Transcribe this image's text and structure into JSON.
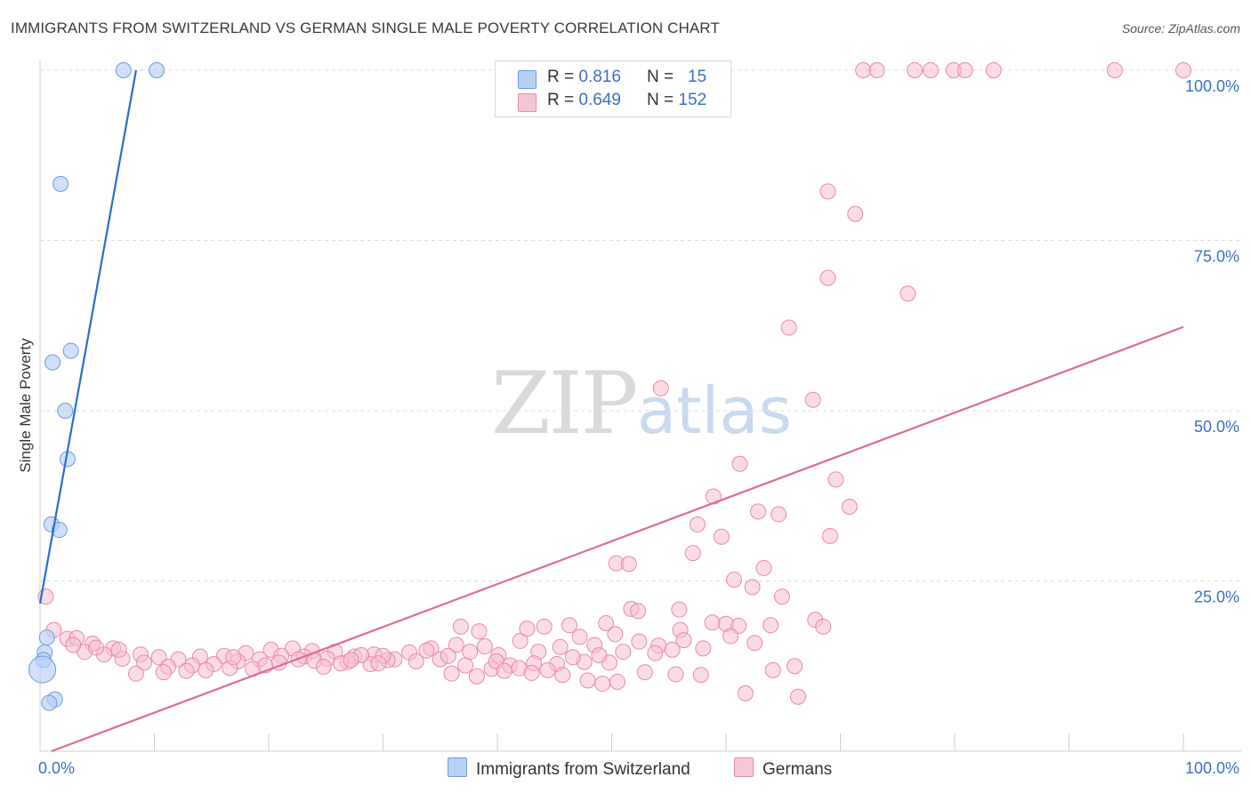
{
  "header": {
    "title": "IMMIGRANTS FROM SWITZERLAND VS GERMAN SINGLE MALE POVERTY CORRELATION CHART",
    "source": "Source: ZipAtlas.com"
  },
  "watermark": {
    "zip": "ZIP",
    "atlas": "atlas"
  },
  "legend": {
    "rows": [
      {
        "r_label": "R =",
        "r_value": "0.816",
        "n_label": "N =",
        "n_value": "15"
      },
      {
        "r_label": "R =",
        "r_value": "0.649",
        "n_label": "N =",
        "n_value": "152"
      }
    ]
  },
  "colors": {
    "blue_fill": "#b8d0f4",
    "blue_stroke": "#6b9be0",
    "blue_line": "#2a6dd0",
    "pink_fill": "#f7bfd0",
    "pink_stroke": "#e88aa8",
    "pink_line": "#e06a94",
    "grid": "#dcdcdc",
    "axis_label": "#3b6fc4"
  },
  "chart_data": {
    "type": "scatter",
    "title": "IMMIGRANTS FROM SWITZERLAND VS GERMAN SINGLE MALE POVERTY CORRELATION CHART",
    "xlabel": "",
    "ylabel": "Single Male Poverty",
    "xlim": [
      0,
      100
    ],
    "ylim": [
      0,
      100
    ],
    "x_tick_labels": [
      "0.0%",
      "100.0%"
    ],
    "y_tick_labels": [
      {
        "value": 100,
        "label": "100.0%"
      },
      {
        "value": 75,
        "label": "75.0%"
      },
      {
        "value": 50,
        "label": "50.0%"
      },
      {
        "value": 25,
        "label": "25.0%"
      }
    ],
    "series": [
      {
        "name": "Immigrants from Switzerland",
        "color": "#b8d0f4",
        "r": 0.816,
        "n": 15,
        "trend": {
          "x": [
            0,
            8.4
          ],
          "y": [
            21.7,
            100
          ]
        },
        "points": [
          [
            7.3,
            100
          ],
          [
            10.2,
            100
          ],
          [
            1.8,
            83.3
          ],
          [
            1.1,
            57.1
          ],
          [
            2.7,
            58.8
          ],
          [
            2.2,
            50.0
          ],
          [
            2.4,
            42.9
          ],
          [
            1.0,
            33.3
          ],
          [
            1.7,
            32.5
          ],
          [
            0.6,
            16.7
          ],
          [
            0.4,
            14.5
          ],
          [
            0.3,
            13.4
          ],
          [
            0.2,
            12.0
          ],
          [
            1.3,
            7.6
          ],
          [
            0.8,
            7.1
          ]
        ]
      },
      {
        "name": "Germans",
        "color": "#f7bfd0",
        "r": 0.649,
        "n": 152,
        "trend": {
          "x": [
            1.0,
            100
          ],
          "y": [
            0,
            62.3
          ]
        },
        "points": [
          [
            72.0,
            100
          ],
          [
            73.2,
            100
          ],
          [
            76.5,
            100
          ],
          [
            77.9,
            100
          ],
          [
            79.9,
            100
          ],
          [
            80.9,
            100
          ],
          [
            83.4,
            100
          ],
          [
            94.0,
            100
          ],
          [
            100,
            100
          ],
          [
            68.9,
            82.2
          ],
          [
            71.3,
            78.9
          ],
          [
            68.9,
            69.5
          ],
          [
            75.9,
            67.2
          ],
          [
            65.5,
            62.2
          ],
          [
            67.6,
            51.6
          ],
          [
            54.3,
            53.3
          ],
          [
            61.2,
            42.2
          ],
          [
            69.6,
            39.9
          ],
          [
            70.8,
            35.9
          ],
          [
            58.9,
            37.4
          ],
          [
            62.8,
            35.2
          ],
          [
            64.6,
            34.8
          ],
          [
            57.5,
            33.3
          ],
          [
            59.6,
            31.5
          ],
          [
            69.1,
            31.6
          ],
          [
            57.1,
            29.1
          ],
          [
            50.4,
            27.6
          ],
          [
            51.5,
            27.5
          ],
          [
            63.3,
            26.9
          ],
          [
            60.7,
            25.2
          ],
          [
            62.3,
            24.1
          ],
          [
            64.9,
            22.7
          ],
          [
            0.5,
            22.7
          ],
          [
            51.7,
            20.9
          ],
          [
            52.3,
            20.6
          ],
          [
            55.9,
            20.8
          ],
          [
            49.5,
            18.8
          ],
          [
            58.8,
            18.9
          ],
          [
            60.0,
            18.7
          ],
          [
            61.1,
            18.4
          ],
          [
            63.9,
            18.5
          ],
          [
            67.8,
            19.3
          ],
          [
            68.5,
            18.3
          ],
          [
            56.0,
            17.8
          ],
          [
            1.2,
            17.8
          ],
          [
            2.4,
            16.5
          ],
          [
            3.2,
            16.6
          ],
          [
            4.6,
            15.8
          ],
          [
            6.4,
            15.1
          ],
          [
            8.8,
            14.2
          ],
          [
            10.4,
            13.8
          ],
          [
            12.1,
            13.5
          ],
          [
            14.0,
            13.9
          ],
          [
            16.1,
            14.0
          ],
          [
            18.0,
            14.4
          ],
          [
            20.2,
            14.9
          ],
          [
            22.1,
            15.1
          ],
          [
            23.8,
            14.7
          ],
          [
            25.8,
            14.6
          ],
          [
            27.5,
            13.9
          ],
          [
            29.2,
            14.2
          ],
          [
            31.0,
            13.5
          ],
          [
            32.3,
            14.5
          ],
          [
            34.2,
            15.1
          ],
          [
            36.4,
            15.6
          ],
          [
            38.9,
            15.4
          ],
          [
            40.1,
            14.1
          ],
          [
            42.0,
            16.2
          ],
          [
            43.6,
            14.6
          ],
          [
            45.5,
            15.3
          ],
          [
            47.2,
            16.8
          ],
          [
            48.5,
            15.6
          ],
          [
            50.3,
            17.2
          ],
          [
            52.4,
            16.1
          ],
          [
            54.1,
            15.5
          ],
          [
            56.3,
            16.3
          ],
          [
            58.0,
            15.1
          ],
          [
            60.4,
            16.9
          ],
          [
            62.5,
            15.9
          ],
          [
            46.3,
            18.5
          ],
          [
            44.1,
            18.3
          ],
          [
            42.6,
            18.0
          ],
          [
            38.4,
            17.6
          ],
          [
            36.8,
            18.3
          ],
          [
            3.9,
            14.6
          ],
          [
            5.6,
            14.2
          ],
          [
            7.2,
            13.6
          ],
          [
            9.1,
            13.0
          ],
          [
            11.2,
            12.4
          ],
          [
            13.3,
            12.6
          ],
          [
            15.2,
            12.8
          ],
          [
            17.3,
            13.2
          ],
          [
            19.2,
            13.5
          ],
          [
            21.1,
            14.0
          ],
          [
            23.1,
            13.9
          ],
          [
            25.1,
            13.6
          ],
          [
            26.9,
            13.1
          ],
          [
            28.9,
            12.8
          ],
          [
            30.4,
            13.4
          ],
          [
            32.9,
            13.2
          ],
          [
            35.0,
            13.5
          ],
          [
            37.2,
            12.6
          ],
          [
            39.5,
            12.1
          ],
          [
            41.1,
            12.6
          ],
          [
            43.2,
            12.9
          ],
          [
            45.2,
            12.8
          ],
          [
            47.6,
            13.1
          ],
          [
            49.8,
            13.0
          ],
          [
            14.5,
            11.9
          ],
          [
            12.8,
            11.8
          ],
          [
            10.8,
            11.6
          ],
          [
            8.4,
            11.4
          ],
          [
            6.9,
            14.9
          ],
          [
            4.9,
            15.2
          ],
          [
            2.9,
            15.6
          ],
          [
            16.6,
            12.2
          ],
          [
            18.6,
            12.1
          ],
          [
            20.9,
            13.0
          ],
          [
            24.0,
            13.3
          ],
          [
            26.3,
            12.9
          ],
          [
            28.1,
            14.1
          ],
          [
            30.0,
            14.0
          ],
          [
            33.8,
            14.8
          ],
          [
            35.7,
            14.0
          ],
          [
            37.6,
            14.6
          ],
          [
            39.9,
            13.2
          ],
          [
            41.9,
            12.2
          ],
          [
            44.4,
            11.9
          ],
          [
            46.6,
            13.8
          ],
          [
            48.9,
            14.1
          ],
          [
            51.0,
            14.6
          ],
          [
            53.8,
            14.4
          ],
          [
            55.3,
            14.9
          ],
          [
            36.0,
            11.4
          ],
          [
            38.2,
            11.0
          ],
          [
            40.6,
            11.8
          ],
          [
            43.0,
            11.5
          ],
          [
            45.7,
            11.2
          ],
          [
            47.9,
            10.4
          ],
          [
            50.5,
            10.2
          ],
          [
            52.9,
            11.6
          ],
          [
            55.6,
            11.3
          ],
          [
            49.2,
            9.9
          ],
          [
            57.8,
            11.2
          ],
          [
            61.7,
            8.5
          ],
          [
            66.3,
            8.0
          ],
          [
            66.0,
            12.5
          ],
          [
            64.1,
            11.9
          ],
          [
            16.9,
            13.8
          ],
          [
            19.7,
            12.6
          ],
          [
            22.6,
            13.5
          ],
          [
            24.8,
            12.4
          ],
          [
            27.2,
            13.4
          ],
          [
            29.6,
            12.9
          ]
        ]
      }
    ]
  },
  "bottom_legend": {
    "items": [
      {
        "label": "Immigrants from Switzerland"
      },
      {
        "label": "Germans"
      }
    ]
  }
}
